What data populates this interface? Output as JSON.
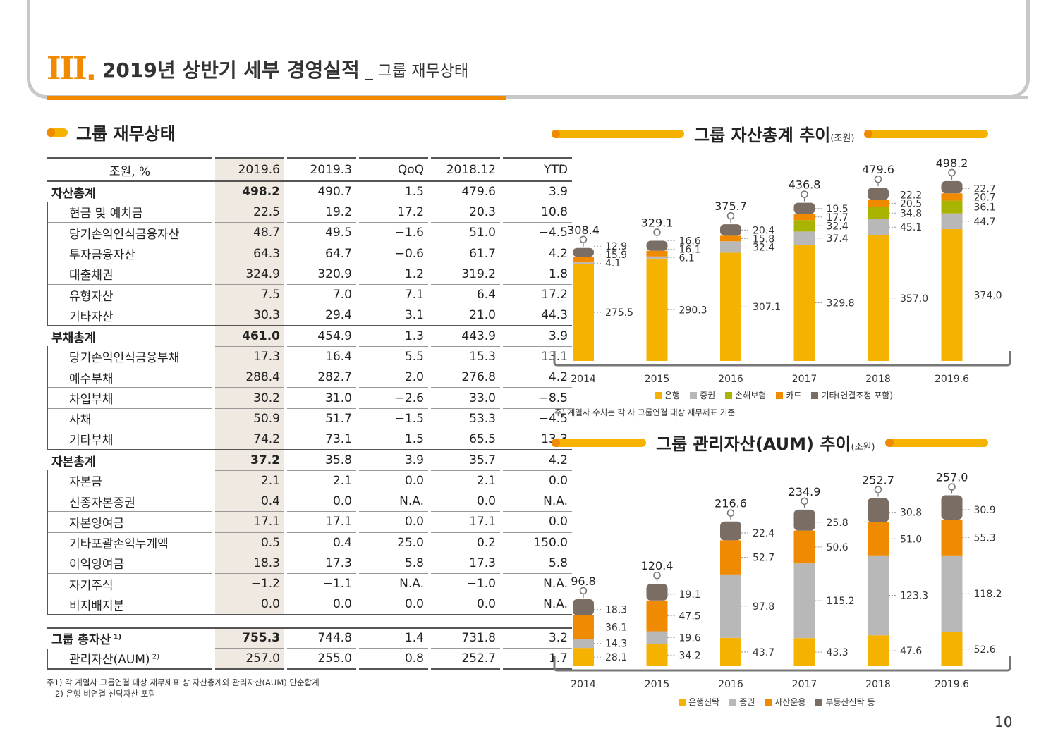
{
  "header": {
    "roman": "III",
    "title": "2019년 상반기 세부 경영실적",
    "subtitle": "_ 그룹 재무상태"
  },
  "section": {
    "title": "그룹 재무상태"
  },
  "table": {
    "headers": [
      "조원, %",
      "2019.6",
      "2019.3",
      "QoQ",
      "2018.12",
      "YTD"
    ],
    "rows": [
      {
        "label": "자산총계",
        "level": "major",
        "values": [
          "498.2",
          "490.7",
          "1.5",
          "479.6",
          "3.9"
        ]
      },
      {
        "label": "현금 및 예치금",
        "level": "sub",
        "values": [
          "22.5",
          "19.2",
          "17.2",
          "20.3",
          "10.8"
        ]
      },
      {
        "label": "당기손익인식금융자산",
        "level": "sub",
        "values": [
          "48.7",
          "49.5",
          "-1.6",
          "51.0",
          "-4.5"
        ]
      },
      {
        "label": "투자금융자산",
        "level": "sub",
        "values": [
          "64.3",
          "64.7",
          "-0.6",
          "61.7",
          "4.2"
        ]
      },
      {
        "label": "대출채권",
        "level": "sub",
        "values": [
          "324.9",
          "320.9",
          "1.2",
          "319.2",
          "1.8"
        ]
      },
      {
        "label": "유형자산",
        "level": "sub",
        "values": [
          "7.5",
          "7.0",
          "7.1",
          "6.4",
          "17.2"
        ]
      },
      {
        "label": "기타자산",
        "level": "sub",
        "values": [
          "30.3",
          "29.4",
          "3.1",
          "21.0",
          "44.3"
        ]
      },
      {
        "label": "부채총계",
        "level": "major",
        "values": [
          "461.0",
          "454.9",
          "1.3",
          "443.9",
          "3.9"
        ]
      },
      {
        "label": "당기손익인식금융부채",
        "level": "sub",
        "values": [
          "17.3",
          "16.4",
          "5.5",
          "15.3",
          "13.1"
        ]
      },
      {
        "label": "예수부채",
        "level": "sub",
        "values": [
          "288.4",
          "282.7",
          "2.0",
          "276.8",
          "4.2"
        ]
      },
      {
        "label": "차입부채",
        "level": "sub",
        "values": [
          "30.2",
          "31.0",
          "-2.6",
          "33.0",
          "-8.5"
        ]
      },
      {
        "label": "사채",
        "level": "sub",
        "values": [
          "50.9",
          "51.7",
          "-1.5",
          "53.3",
          "-4.5"
        ]
      },
      {
        "label": "기타부채",
        "level": "sub",
        "values": [
          "74.2",
          "73.1",
          "1.5",
          "65.5",
          "13.3"
        ]
      },
      {
        "label": "자본총계",
        "level": "major",
        "values": [
          "37.2",
          "35.8",
          "3.9",
          "35.7",
          "4.2"
        ]
      },
      {
        "label": "자본금",
        "level": "sub",
        "values": [
          "2.1",
          "2.1",
          "0.0",
          "2.1",
          "0.0"
        ]
      },
      {
        "label": "신종자본증권",
        "level": "sub",
        "values": [
          "0.4",
          "0.0",
          "N.A.",
          "0.0",
          "N.A."
        ]
      },
      {
        "label": "자본잉여금",
        "level": "sub",
        "values": [
          "17.1",
          "17.1",
          "0.0",
          "17.1",
          "0.0"
        ]
      },
      {
        "label": "기타포괄손익누계액",
        "level": "sub",
        "values": [
          "0.5",
          "0.4",
          "25.0",
          "0.2",
          "150.0"
        ]
      },
      {
        "label": "이익잉여금",
        "level": "sub",
        "values": [
          "18.3",
          "17.3",
          "5.8",
          "17.3",
          "5.8"
        ]
      },
      {
        "label": "자기주식",
        "level": "sub",
        "values": [
          "-1.2",
          "-1.1",
          "N.A.",
          "-1.0",
          "N.A."
        ]
      },
      {
        "label": "비지배지분",
        "level": "sub",
        "values": [
          "0.0",
          "0.0",
          "0.0",
          "0.0",
          "N.A."
        ]
      }
    ],
    "summary": [
      {
        "label": "그룹 총자산",
        "sup": "1)",
        "level": "major",
        "values": [
          "755.3",
          "744.8",
          "1.4",
          "731.8",
          "3.2"
        ]
      },
      {
        "label": "관리자산(AUM)",
        "sup": "2)",
        "level": "sub",
        "values": [
          "257.0",
          "255.0",
          "0.8",
          "252.7",
          "1.7"
        ]
      }
    ]
  },
  "footnotes": [
    "주1) 각 계열사 그룹연결 대상 재무제표 상 자산총계와 관리자산(AUM) 단순합계",
    "2) 은행 비연결 신탁자산 포함"
  ],
  "chart_data": [
    {
      "type": "bar",
      "stacked": true,
      "title": "그룹 자산총계 추이",
      "unit": "(조원)",
      "categories": [
        "2014",
        "2015",
        "2016",
        "2017",
        "2018",
        "2019.6"
      ],
      "totals": [
        "308.4",
        "329.1",
        "375.7",
        "436.8",
        "479.6",
        "498.2"
      ],
      "series": [
        {
          "name": "은행",
          "color": "#f5b200",
          "values": [
            275.5,
            290.3,
            307.1,
            329.8,
            357.0,
            374.0
          ]
        },
        {
          "name": "증권",
          "color": "#b8b8b8",
          "values": [
            4.1,
            6.1,
            32.4,
            37.4,
            45.1,
            44.7
          ]
        },
        {
          "name": "손해보험",
          "color": "#a8b400",
          "values": [
            null,
            null,
            null,
            32.4,
            34.8,
            36.1
          ]
        },
        {
          "name": "카드",
          "color": "#f08a00",
          "values": [
            15.9,
            16.1,
            15.8,
            17.7,
            20.5,
            20.7
          ]
        },
        {
          "name": "기타(연결조정 포함)",
          "color": "#7a6e64",
          "values": [
            12.9,
            16.6,
            20.4,
            19.5,
            22.2,
            22.7
          ]
        }
      ],
      "note": "주) 계열사 수치는 각 사 그룹연결 대상 재무제표 기준"
    },
    {
      "type": "bar",
      "stacked": true,
      "title": "그룹 관리자산(AUM) 추이",
      "unit": "(조원)",
      "categories": [
        "2014",
        "2015",
        "2016",
        "2017",
        "2018",
        "2019.6"
      ],
      "totals": [
        "96.8",
        "120.4",
        "216.6",
        "234.9",
        "252.7",
        "257.0"
      ],
      "series": [
        {
          "name": "은행신탁",
          "color": "#f5b200",
          "values": [
            28.1,
            34.2,
            43.7,
            43.3,
            47.6,
            52.6
          ]
        },
        {
          "name": "증권",
          "color": "#b8b8b8",
          "values": [
            14.3,
            19.6,
            97.8,
            115.2,
            123.3,
            118.2
          ]
        },
        {
          "name": "자산운용",
          "color": "#f08a00",
          "values": [
            36.1,
            47.5,
            52.7,
            50.6,
            51.0,
            55.3
          ]
        },
        {
          "name": "부동산신탁 등",
          "color": "#7a6e64",
          "values": [
            18.3,
            19.1,
            22.4,
            25.8,
            30.8,
            30.9
          ]
        }
      ]
    }
  ],
  "page_number": "10"
}
